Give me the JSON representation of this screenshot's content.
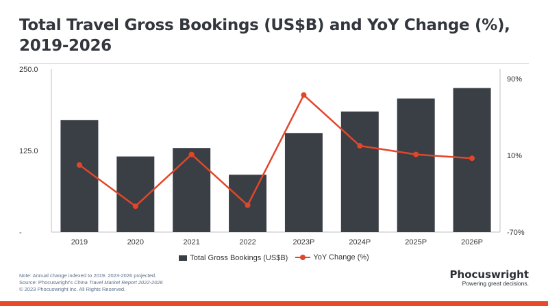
{
  "header": {
    "title_line1": "Total Travel Gross Bookings (US$B) and YoY Change (%),",
    "title_line2": "2019-2026"
  },
  "colors": {
    "bar": "#3a3f46",
    "line": "#e2462a",
    "accent": "#e84a27",
    "text": "#333333"
  },
  "chart_data": {
    "type": "bar",
    "title": "Total Travel Gross Bookings (US$B) and YoY Change (%), 2019-2026",
    "categories": [
      "2019",
      "2020",
      "2021",
      "2022",
      "2023P",
      "2024P",
      "2025P",
      "2026P"
    ],
    "series": [
      {
        "name": "Total Gross Bookings (US$B)",
        "type": "bar",
        "axis": "left",
        "values": [
          172,
          116,
          129,
          88,
          152,
          185,
          205,
          221
        ]
      },
      {
        "name": "YoY Change (%)",
        "type": "line",
        "axis": "right",
        "values": [
          0,
          -43,
          11,
          -42,
          73,
          20,
          11,
          7
        ]
      }
    ],
    "y_left": {
      "ylim": [
        0,
        250
      ],
      "ticks": [
        "-",
        "125.0",
        "250.0"
      ],
      "tick_values": [
        0,
        125,
        250
      ]
    },
    "y_right": {
      "ylim": [
        -70,
        100
      ],
      "ticks": [
        "-70%",
        "10%",
        "90%"
      ],
      "tick_values": [
        -70,
        10,
        90
      ]
    },
    "grid": false,
    "legend_position": "bottom"
  },
  "legend": {
    "bar_label": "Total Gross Bookings (US$B)",
    "line_label": "YoY Change (%)"
  },
  "notes": {
    "line1": "Note: Annual change indexed to 2019. 2023-2026 projected.",
    "line2_prefix": "Source: Phocuswright's ",
    "line2_title": "China Travel Market Report 2022-2026",
    "line3": "© 2023 Phocuswright Inc. All Rights Reserved."
  },
  "brand": {
    "name": "Phocuswright",
    "tagline": "Powering great decisions."
  }
}
